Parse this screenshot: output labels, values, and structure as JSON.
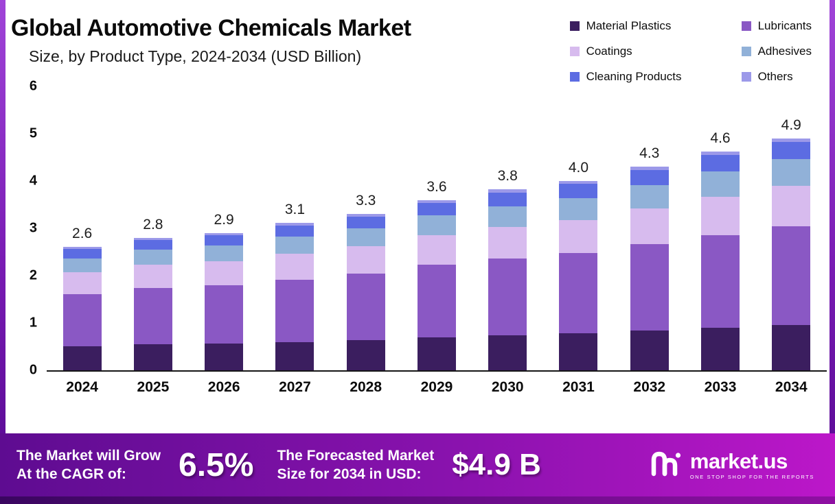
{
  "title": "Global Automotive Chemicals Market",
  "subtitle": "Size, by Product Type, 2024-2034 (USD Billion)",
  "chart_data": {
    "type": "bar",
    "stacked": true,
    "title": "Global Automotive Chemicals Market Size, by Product Type, 2024-2034 (USD Billion)",
    "categories": [
      "2024",
      "2025",
      "2026",
      "2027",
      "2028",
      "2029",
      "2030",
      "2031",
      "2032",
      "2033",
      "2034"
    ],
    "totals": [
      "2.6",
      "2.8",
      "2.9",
      "3.1",
      "3.3",
      "3.6",
      "3.8",
      "4.0",
      "4.3",
      "4.6",
      "4.9"
    ],
    "series": [
      {
        "name": "Material Plastics",
        "color": "#3b1e5f",
        "values": [
          0.51,
          0.55,
          0.57,
          0.6,
          0.64,
          0.7,
          0.74,
          0.78,
          0.84,
          0.9,
          0.96
        ]
      },
      {
        "name": "Lubricants",
        "color": "#8a58c4",
        "values": [
          1.1,
          1.19,
          1.23,
          1.32,
          1.4,
          1.53,
          1.62,
          1.7,
          1.83,
          1.96,
          2.08
        ]
      },
      {
        "name": "Coatings",
        "color": "#d7bbee",
        "values": [
          0.46,
          0.49,
          0.51,
          0.54,
          0.58,
          0.63,
          0.67,
          0.7,
          0.75,
          0.81,
          0.86
        ]
      },
      {
        "name": "Adhesives",
        "color": "#91b1d8",
        "values": [
          0.3,
          0.32,
          0.33,
          0.36,
          0.38,
          0.41,
          0.44,
          0.46,
          0.49,
          0.53,
          0.56
        ]
      },
      {
        "name": "Cleaning Products",
        "color": "#5c6ce2",
        "values": [
          0.2,
          0.21,
          0.22,
          0.24,
          0.25,
          0.27,
          0.29,
          0.3,
          0.32,
          0.35,
          0.37
        ]
      },
      {
        "name": "Others",
        "color": "#9c99e9",
        "values": [
          0.04,
          0.04,
          0.04,
          0.05,
          0.05,
          0.05,
          0.06,
          0.06,
          0.07,
          0.07,
          0.07
        ]
      }
    ],
    "ylim": [
      0,
      6
    ],
    "yticks": [
      6,
      5,
      4,
      3,
      2,
      1,
      0
    ],
    "legend_position": "top-right",
    "grid": false
  },
  "banner": {
    "cagr_label": "The Market will Grow\nAt the CAGR of:",
    "cagr_value": "6.5%",
    "forecast_label": "The Forecasted Market\nSize for 2034 in USD:",
    "forecast_value": "$4.9 B",
    "brand": "market.us",
    "brand_tagline": "ONE STOP SHOP FOR THE REPORTS"
  },
  "colors": {
    "banner_gradient_start": "#5e0c91",
    "banner_gradient_end": "#bc17c9",
    "axis": "#151515"
  },
  "icons": {
    "brand_logo": "market-us-logo"
  }
}
